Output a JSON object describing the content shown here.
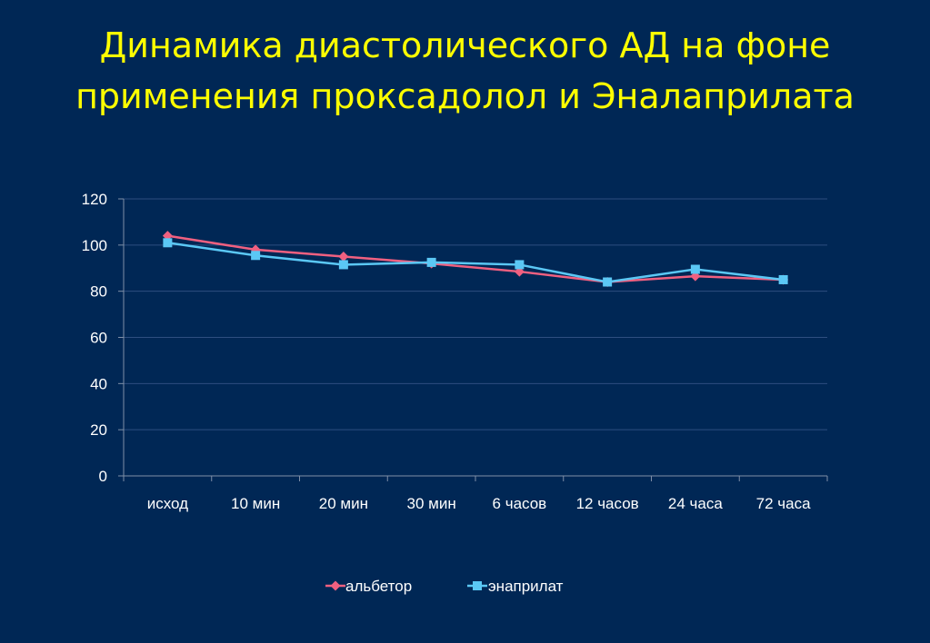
{
  "title_line1": "Динамика диастолического АД на фоне",
  "title_line2": "применения проксадолол и Эналаприлата",
  "colors": {
    "background": "#002755",
    "title": "#FFFF00",
    "text": "#FFFFFF",
    "grid": "#2E4E80",
    "series1": "#F06080",
    "series2": "#5BC8F5"
  },
  "chart_data": {
    "type": "line",
    "categories": [
      "исход",
      "10 мин",
      "20 мин",
      "30 мин",
      "6 часов",
      "12 часов",
      "24 часа",
      "72 часа"
    ],
    "series": [
      {
        "name": "альбетор",
        "marker": "diamond",
        "values": [
          104,
          98,
          95,
          92,
          88.5,
          84,
          86.5,
          85
        ]
      },
      {
        "name": "энаприлат",
        "marker": "square",
        "values": [
          101,
          95.5,
          91.5,
          92.5,
          91.5,
          84,
          89.5,
          85
        ]
      }
    ],
    "ylim": [
      0,
      120
    ],
    "yticks": [
      0,
      20,
      40,
      60,
      80,
      100,
      120
    ],
    "grid": true,
    "legend": "bottom"
  }
}
